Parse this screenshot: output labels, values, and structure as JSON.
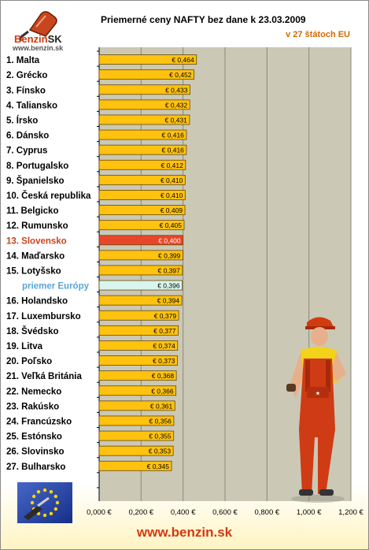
{
  "logo": {
    "word_main": "Benzin",
    "word_accent": "SK",
    "url": "www.benzin.sk"
  },
  "chart_data": {
    "type": "bar",
    "orientation": "horizontal",
    "title": "Priemerné ceny NAFTY bez dane k 23.03.2009",
    "subtitle": "v 27 štátoch EU",
    "unit_prefix": "€",
    "categories": [
      "1. Malta",
      "2. Grécko",
      "3. Fínsko",
      "4. Taliansko",
      "5. Írsko",
      "6. Dánsko",
      "7. Cyprus",
      "8. Portugalsko",
      "9. Španielsko",
      "10. Česká republika",
      "11. Belgicko",
      "12. Rumunsko",
      "13. Slovensko",
      "14. Maďarsko",
      "15. Lotyšsko",
      "priemer Európy",
      "16. Holandsko",
      "17. Luxembursko",
      "18. Švédsko",
      "19. Litva",
      "20. Poľsko",
      "21. Veľká Británia",
      "22. Nemecko",
      "23. Rakúsko",
      "24. Francúzsko",
      "25. Estónsko",
      "26. Slovinsko",
      "27. Bulharsko"
    ],
    "values": [
      0.464,
      0.452,
      0.433,
      0.432,
      0.431,
      0.416,
      0.416,
      0.412,
      0.41,
      0.41,
      0.409,
      0.405,
      0.4,
      0.399,
      0.397,
      0.396,
      0.394,
      0.379,
      0.377,
      0.374,
      0.373,
      0.368,
      0.366,
      0.361,
      0.356,
      0.355,
      0.353,
      0.345
    ],
    "value_labels": [
      "€ 0,464",
      "€ 0,452",
      "€ 0,433",
      "€ 0,432",
      "€ 0,431",
      "€ 0,416",
      "€ 0,416",
      "€ 0,412",
      "€ 0,410",
      "€ 0,410",
      "€ 0,409",
      "€ 0,405",
      "€ 0,400",
      "€ 0,399",
      "€ 0,397",
      "€ 0,396",
      "€ 0,394",
      "€ 0,379",
      "€ 0,377",
      "€ 0,374",
      "€ 0,373",
      "€ 0,368",
      "€ 0,366",
      "€ 0,361",
      "€ 0,356",
      "€ 0,355",
      "€ 0,353",
      "€ 0,345"
    ],
    "highlight_index": 12,
    "average_index": 15,
    "xlim": [
      0,
      1.2
    ],
    "xticks": [
      0,
      0.2,
      0.4,
      0.6,
      0.8,
      1.0,
      1.2
    ],
    "xtick_labels": [
      "0,000 €",
      "0,200 €",
      "0,400 €",
      "0,600 €",
      "0,800 €",
      "1,000 €",
      "1,200 €"
    ],
    "grid": true,
    "colors": {
      "bar": "#ffc20e",
      "bar_border": "#6b4a00",
      "highlight_bar": "#e8462a",
      "highlight_label": "#c8451e",
      "average_bar": "#d9f6ee",
      "average_label": "#5aa6d8",
      "plot_bg": "#cbc8b6",
      "grid": "#8a8777"
    }
  },
  "footer": {
    "url": "www.benzin.sk"
  }
}
